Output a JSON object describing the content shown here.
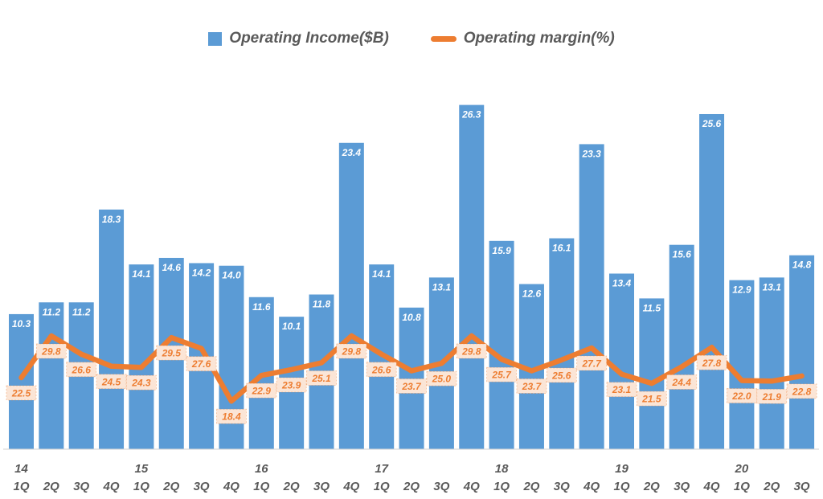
{
  "legend": {
    "items": [
      {
        "label": "Operating Income($B)",
        "marker": "square",
        "color": "#5B9BD5"
      },
      {
        "label": "Operating margin(%)",
        "marker": "dash",
        "color": "#ED7D31"
      }
    ]
  },
  "chart_data": {
    "type": "bar+line",
    "title": "",
    "categories": [
      "1Q",
      "2Q",
      "3Q",
      "4Q",
      "1Q",
      "2Q",
      "3Q",
      "4Q",
      "1Q",
      "2Q",
      "3Q",
      "4Q",
      "1Q",
      "2Q",
      "3Q",
      "4Q",
      "1Q",
      "2Q",
      "3Q",
      "4Q",
      "1Q",
      "2Q",
      "3Q",
      "4Q",
      "1Q",
      "2Q",
      "3Q"
    ],
    "year_markers": [
      {
        "label": "14",
        "index": 0
      },
      {
        "label": "15",
        "index": 4
      },
      {
        "label": "16",
        "index": 8
      },
      {
        "label": "17",
        "index": 12
      },
      {
        "label": "18",
        "index": 16
      },
      {
        "label": "19",
        "index": 20
      },
      {
        "label": "20",
        "index": 24
      }
    ],
    "series": [
      {
        "name": "Operating Income($B)",
        "type": "bar",
        "color": "#5B9BD5",
        "label_color": "#FFFFFF",
        "values": [
          10.3,
          11.2,
          11.2,
          18.3,
          14.1,
          14.6,
          14.2,
          14.0,
          11.6,
          10.1,
          11.8,
          23.4,
          14.1,
          10.8,
          13.1,
          26.3,
          15.9,
          12.6,
          16.1,
          23.3,
          13.4,
          11.5,
          15.6,
          25.6,
          12.9,
          13.1,
          14.8
        ]
      },
      {
        "name": "Operating margin(%)",
        "type": "line",
        "color": "#ED7D31",
        "label_bg": "#FBE5D6",
        "values": [
          22.5,
          29.8,
          26.6,
          24.5,
          24.3,
          29.5,
          27.6,
          18.4,
          22.9,
          23.9,
          25.1,
          29.8,
          26.6,
          23.7,
          25.0,
          29.8,
          25.7,
          23.7,
          25.6,
          27.7,
          23.1,
          21.5,
          24.4,
          27.8,
          22.0,
          21.9,
          22.8
        ]
      }
    ],
    "axes": {
      "x_axis_color": "#D9D9D9",
      "text_color": "#595959",
      "grid": false,
      "legend_position": "top",
      "value_labels": "all points labeled with one decimal"
    }
  }
}
